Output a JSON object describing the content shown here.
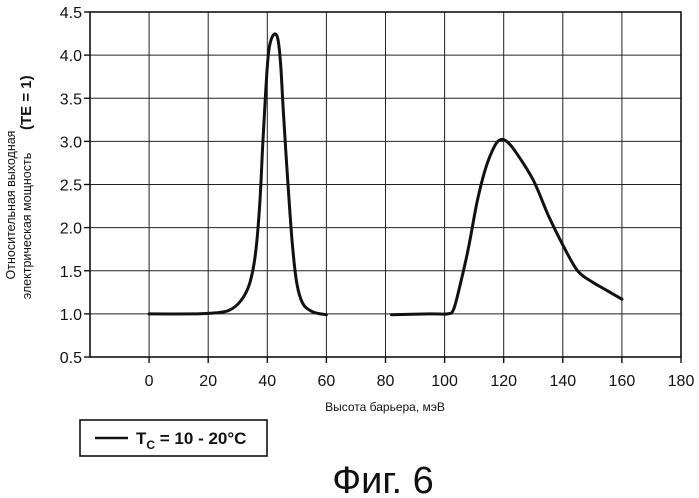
{
  "chart_data": {
    "type": "line",
    "xlabel": "Высота барьера, мэВ",
    "ylabel_line1": "Относительная выходная",
    "ylabel_line2": "электрическая мощность",
    "ylabel_suffix": "(ТЕ = 1)",
    "xlim": [
      -20,
      180
    ],
    "ylim": [
      0.5,
      4.5
    ],
    "x_ticks": [
      0,
      20,
      40,
      60,
      80,
      100,
      120,
      140,
      160,
      180
    ],
    "y_ticks": [
      0.5,
      1.0,
      1.5,
      2.0,
      2.5,
      3.0,
      3.5,
      4.0,
      4.5
    ],
    "grid": true,
    "series": [
      {
        "name": "T_C = 10 - 20°C",
        "segments": [
          [
            [
              0,
              1.0
            ],
            [
              15,
              1.0
            ],
            [
              22,
              1.01
            ],
            [
              27,
              1.04
            ],
            [
              31,
              1.15
            ],
            [
              34,
              1.35
            ],
            [
              36,
              1.7
            ],
            [
              37.5,
              2.3
            ],
            [
              38.5,
              3.0
            ],
            [
              39.5,
              3.6
            ],
            [
              40.5,
              4.05
            ],
            [
              42,
              4.23
            ],
            [
              43.5,
              4.2
            ],
            [
              44.5,
              3.9
            ],
            [
              45.5,
              3.3
            ],
            [
              47,
              2.5
            ],
            [
              48.5,
              1.8
            ],
            [
              50,
              1.35
            ],
            [
              52,
              1.12
            ],
            [
              55,
              1.03
            ],
            [
              58,
              1.0
            ],
            [
              60,
              0.99
            ]
          ],
          [
            [
              82,
              0.99
            ],
            [
              95,
              1.0
            ],
            [
              101,
              1.0
            ],
            [
              103,
              1.05
            ],
            [
              105,
              1.3
            ],
            [
              108,
              1.75
            ],
            [
              111,
              2.3
            ],
            [
              114,
              2.7
            ],
            [
              117,
              2.95
            ],
            [
              119,
              3.02
            ],
            [
              121,
              3.0
            ],
            [
              124,
              2.88
            ],
            [
              130,
              2.55
            ],
            [
              135,
              2.15
            ],
            [
              140,
              1.8
            ],
            [
              145,
              1.5
            ],
            [
              150,
              1.37
            ],
            [
              155,
              1.27
            ],
            [
              160,
              1.17
            ]
          ]
        ]
      }
    ]
  },
  "legend": {
    "label_main": "T",
    "label_sub": "C",
    "label_rest": " = 10 - 20°C"
  },
  "figure_caption": "Фиг. 6"
}
